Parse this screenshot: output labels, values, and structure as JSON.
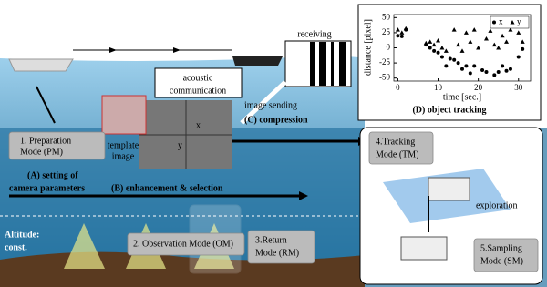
{
  "labels": {
    "receiving": "receiving",
    "acoustic": [
      "acoustic",
      "communication"
    ],
    "image_sending": "image sending",
    "compression": "(C) compression",
    "template": [
      "template",
      "image"
    ],
    "axis_x": "x",
    "axis_y": "y",
    "preparation": [
      "1. Preparation",
      "Mode (PM)"
    ],
    "setting": [
      "(A)  setting of",
      "camera parameters"
    ],
    "enhancement": "(B) enhancement & selection",
    "altitude": [
      "Altitude:",
      "const."
    ],
    "observation": "2. Observation Mode (OM)",
    "return": [
      "3.Return",
      "Mode (RM)"
    ],
    "tracking": [
      "4.Tracking",
      "Mode (TM)"
    ],
    "exploration": "exploration",
    "sampling": [
      "5.Sampling",
      "Mode (SM)"
    ]
  },
  "tracking_plot": {
    "type": "scatter",
    "title": "(D) object tracking",
    "xlabel": "time [sec.]",
    "ylabel": "distance [pixel]",
    "xlim": [
      -1,
      33
    ],
    "ylim": [
      -55,
      55
    ],
    "xticks": [
      0,
      10,
      20,
      30
    ],
    "yticks": [
      50,
      25,
      0,
      -25,
      -50
    ],
    "legend": "upper right",
    "series": [
      {
        "name": "x",
        "marker": "circle",
        "color": "#000000",
        "x": [
          0,
          1,
          2,
          7,
          8,
          9,
          10,
          11,
          12,
          13,
          14,
          15,
          16,
          17,
          18,
          19,
          21,
          22,
          24,
          25,
          26,
          27,
          28,
          30,
          31
        ],
        "values": [
          20,
          19,
          30,
          5,
          0,
          -5,
          -8,
          -15,
          -30,
          -18,
          -20,
          -25,
          -35,
          -30,
          -42,
          -30,
          -37,
          -40,
          -45,
          -40,
          -30,
          -38,
          -35,
          -15,
          -2
        ]
      },
      {
        "name": "y",
        "marker": "triangle",
        "color": "#000000",
        "x": [
          0,
          1,
          2,
          7,
          8,
          9,
          10,
          11,
          12,
          14,
          15,
          16,
          17,
          18,
          19,
          20,
          22,
          23,
          24,
          25,
          26,
          27,
          28,
          30,
          31
        ],
        "values": [
          30,
          25,
          32,
          8,
          10,
          5,
          12,
          0,
          -5,
          30,
          5,
          -5,
          25,
          10,
          30,
          0,
          15,
          28,
          5,
          0,
          20,
          10,
          30,
          25,
          10
        ]
      }
    ]
  }
}
